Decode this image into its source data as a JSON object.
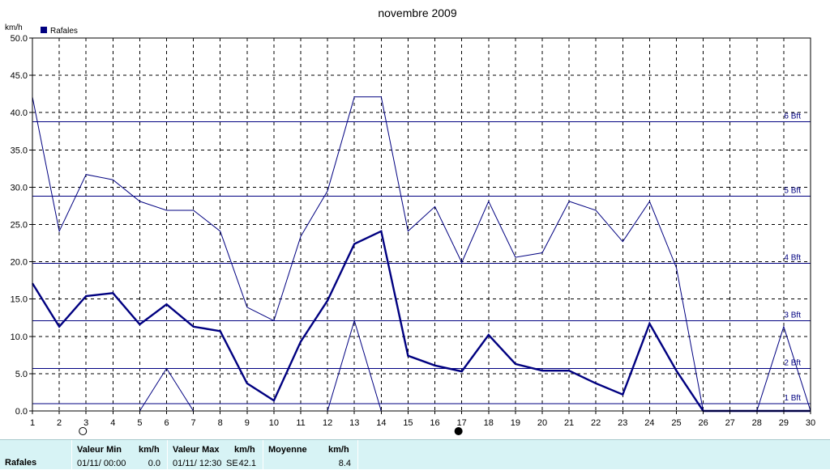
{
  "chart_data": {
    "type": "line",
    "title": "novembre 2009",
    "ylabel": "km/h",
    "legend": {
      "label": "Rafales",
      "placement": "top-left"
    },
    "ylim": [
      0,
      50
    ],
    "xlim": [
      1,
      30
    ],
    "yticks": [
      "0.0",
      "5.0",
      "10.0",
      "15.0",
      "20.0",
      "25.0",
      "30.0",
      "35.0",
      "40.0",
      "45.0",
      "50.0"
    ],
    "x": [
      1,
      2,
      3,
      4,
      5,
      6,
      7,
      8,
      9,
      10,
      11,
      12,
      13,
      14,
      15,
      16,
      17,
      18,
      19,
      20,
      21,
      22,
      23,
      24,
      25,
      26,
      27,
      28,
      29,
      30
    ],
    "grid": true,
    "series": [
      {
        "role": "max",
        "values": [
          42.1,
          24.1,
          31.7,
          31.0,
          28.1,
          26.9,
          26.9,
          24.1,
          13.9,
          12.1,
          23.4,
          29.5,
          42.1,
          42.1,
          24.1,
          27.4,
          19.9,
          28.1,
          20.6,
          21.2,
          28.1,
          26.9,
          22.7,
          28.1,
          19.2,
          0.0,
          0.0,
          0.0,
          0.0,
          0.0
        ],
        "color": "#000080",
        "width": 1
      },
      {
        "role": "mean",
        "values": [
          17.1,
          11.3,
          15.4,
          15.8,
          11.6,
          14.3,
          11.3,
          10.7,
          3.7,
          1.4,
          9.3,
          14.8,
          22.4,
          24.1,
          7.4,
          6.1,
          5.3,
          10.2,
          6.3,
          5.4,
          5.4,
          3.7,
          2.2,
          11.7,
          5.4,
          0.0,
          0.0,
          0.0,
          0.0,
          0.0
        ],
        "color": "#000080",
        "width": 2.4
      },
      {
        "role": "min",
        "values": [
          null,
          null,
          null,
          null,
          0.0,
          5.7,
          0.0,
          null,
          null,
          null,
          null,
          0.0,
          12.1,
          0.0,
          null,
          null,
          null,
          null,
          null,
          null,
          null,
          null,
          null,
          null,
          null,
          null,
          null,
          0.0,
          11.3,
          0.0
        ],
        "color": "#000080",
        "width": 1
      }
    ],
    "reference_lines": [
      {
        "value": 1.0,
        "label": "1 Bft"
      },
      {
        "value": 5.7,
        "label": "2 Bft"
      },
      {
        "value": 12.1,
        "label": "3 Bft"
      },
      {
        "value": 19.8,
        "label": "4 Bft"
      },
      {
        "value": 28.8,
        "label": "5 Bft"
      },
      {
        "value": 38.8,
        "label": "6 Bft"
      }
    ],
    "moon_markers": [
      {
        "x": 3,
        "phase": "full"
      },
      {
        "x": 17,
        "phase": "new"
      }
    ]
  },
  "footer": {
    "row_label": "Rafales",
    "min_header": "Valeur Min",
    "min_unit": "km/h",
    "min_date": "01/11/  00:00",
    "min_value": "0.0",
    "max_header": "Valeur Max",
    "max_unit": "km/h",
    "max_date": "01/11/  12:30",
    "max_dir": "SE",
    "max_value": "42.1",
    "mean_header": "Moyenne",
    "mean_unit": "km/h",
    "mean_value": "8.4"
  }
}
